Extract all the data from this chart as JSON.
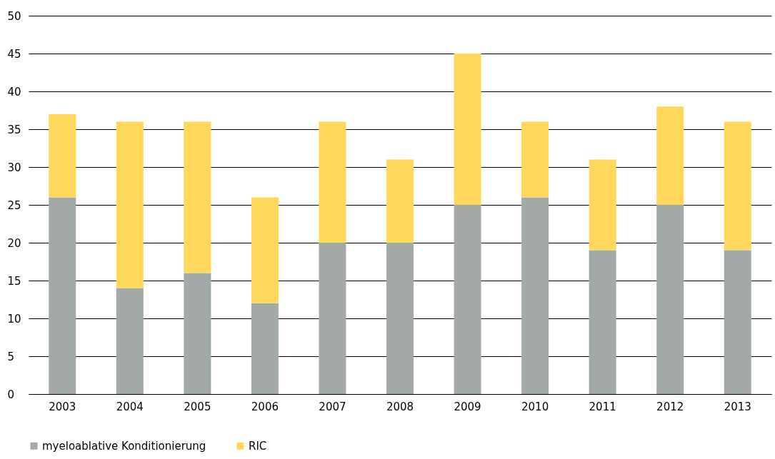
{
  "chart_data": {
    "type": "bar",
    "stacked": true,
    "categories": [
      "2003",
      "2004",
      "2005",
      "2006",
      "2007",
      "2008",
      "2009",
      "2010",
      "2011",
      "2012",
      "2013"
    ],
    "series": [
      {
        "name": "myeloablative Konditionierung",
        "color": "#a3aaa5",
        "values": [
          26,
          14,
          16,
          12,
          20,
          20,
          25,
          26,
          19,
          25,
          19
        ]
      },
      {
        "name": "RIC",
        "color": "#ffd75a",
        "values": [
          11,
          22,
          20,
          14,
          16,
          11,
          20,
          10,
          12,
          13,
          17
        ]
      }
    ],
    "ylim": [
      0,
      50
    ],
    "yticks": [
      0,
      5,
      10,
      15,
      20,
      25,
      30,
      35,
      40,
      45,
      50
    ],
    "grid": "y",
    "legend": "bottom"
  }
}
